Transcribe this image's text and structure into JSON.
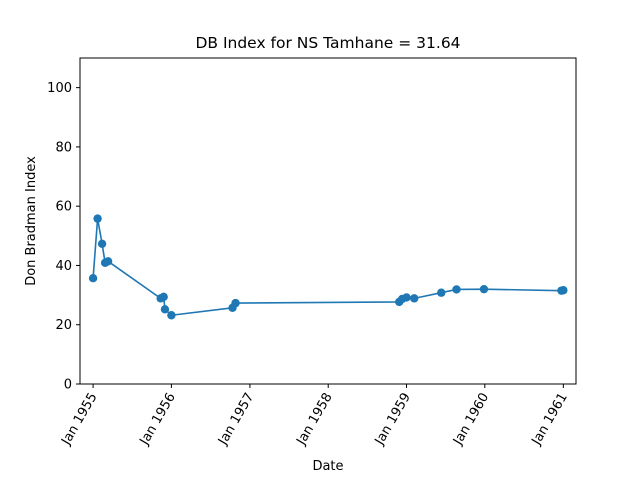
{
  "chart_data": {
    "type": "line",
    "title": "DB Index for NS Tamhane = 31.64",
    "xlabel": "Date",
    "ylabel": "Don Bradman Index",
    "ylim": [
      0,
      110
    ],
    "yticks": [
      0,
      20,
      40,
      60,
      80,
      100
    ],
    "xlim": [
      "1954-11-01",
      "1961-03-01"
    ],
    "xticks": [
      {
        "date": "1955-01-01",
        "label": "Jan 1955"
      },
      {
        "date": "1956-01-01",
        "label": "Jan 1956"
      },
      {
        "date": "1957-01-01",
        "label": "Jan 1957"
      },
      {
        "date": "1958-01-01",
        "label": "Jan 1958"
      },
      {
        "date": "1959-01-01",
        "label": "Jan 1959"
      },
      {
        "date": "1960-01-01",
        "label": "Jan 1960"
      },
      {
        "date": "1961-01-01",
        "label": "Jan 1961"
      }
    ],
    "grid": false,
    "color": "#1f77b4",
    "series": [
      {
        "points": [
          {
            "x": "1955-01-01",
            "y": 35.7
          },
          {
            "x": "1955-01-22",
            "y": 55.8
          },
          {
            "x": "1955-02-12",
            "y": 47.3
          },
          {
            "x": "1955-02-26",
            "y": 40.9
          },
          {
            "x": "1955-03-12",
            "y": 41.4
          },
          {
            "x": "1955-11-12",
            "y": 28.9
          },
          {
            "x": "1955-11-26",
            "y": 29.4
          },
          {
            "x": "1955-12-02",
            "y": 25.2
          },
          {
            "x": "1956-01-01",
            "y": 23.2
          },
          {
            "x": "1956-10-12",
            "y": 25.7
          },
          {
            "x": "1956-10-26",
            "y": 27.3
          },
          {
            "x": "1958-11-28",
            "y": 27.7
          },
          {
            "x": "1958-12-12",
            "y": 28.7
          },
          {
            "x": "1959-01-01",
            "y": 29.2
          },
          {
            "x": "1959-02-06",
            "y": 28.9
          },
          {
            "x": "1959-06-12",
            "y": 30.8
          },
          {
            "x": "1959-08-22",
            "y": 31.9
          },
          {
            "x": "1959-12-28",
            "y": 32.0
          },
          {
            "x": "1960-12-23",
            "y": 31.5
          },
          {
            "x": "1961-01-01",
            "y": 31.64
          }
        ]
      }
    ]
  }
}
